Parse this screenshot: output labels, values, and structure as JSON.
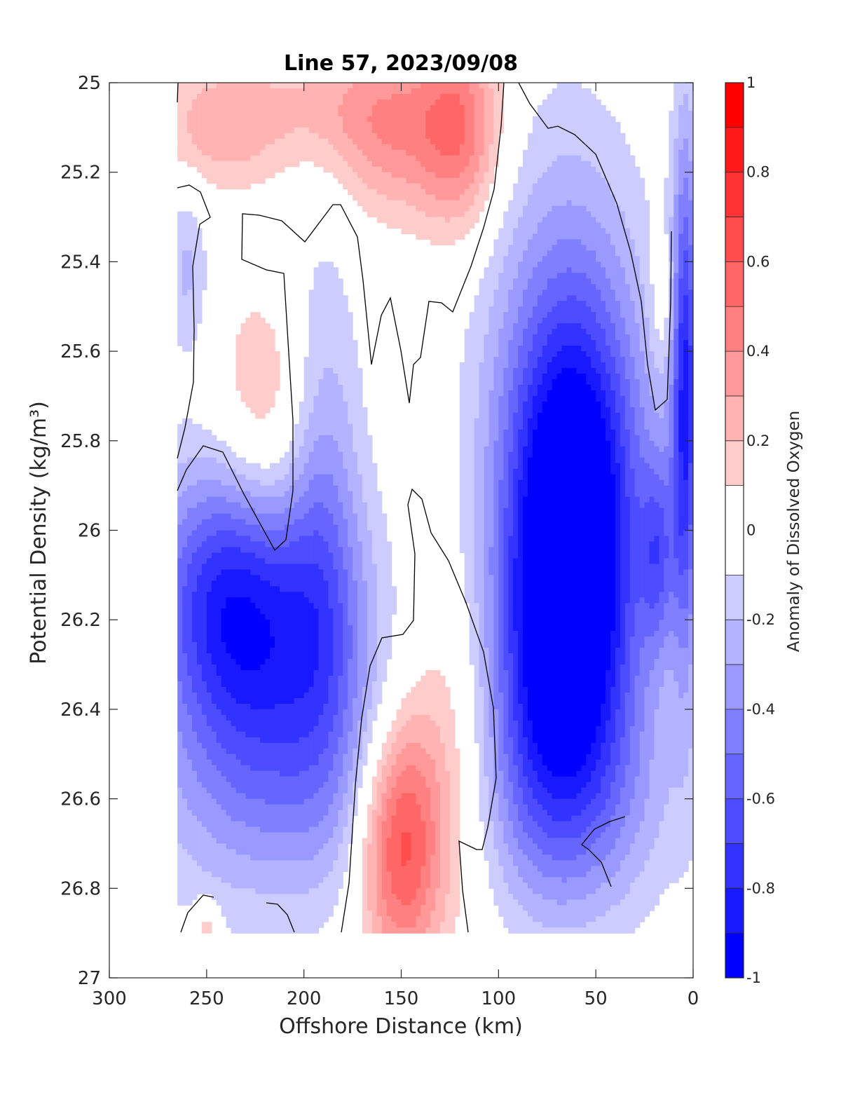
{
  "chart_data": {
    "type": "heatmap",
    "title": "Line 57, 2023/09/08",
    "xlabel": "Offshore Distance (km)",
    "ylabel": "Potential Density (kg/m³)",
    "xlim": [
      300,
      0
    ],
    "ylim": [
      25,
      27
    ],
    "x_ticks": [
      "300",
      "250",
      "200",
      "150",
      "100",
      "50",
      "0"
    ],
    "y_ticks": [
      "25",
      "25.2",
      "25.4",
      "25.6",
      "25.8",
      "26",
      "26.2",
      "26.4",
      "26.6",
      "26.8",
      "27"
    ],
    "y_reversed": true,
    "colorbar": {
      "label": "Anomaly of Dissolved Oxygen",
      "range": [
        -1,
        1
      ],
      "tick_labels": [
        "1",
        "0.8",
        "0.6",
        "0.4",
        "0.2",
        "0",
        "-0.2",
        "-0.4",
        "-0.6",
        "-0.8",
        "-1"
      ],
      "levels": [
        -1,
        -0.9,
        -0.8,
        -0.7,
        -0.6,
        -0.5,
        -0.4,
        -0.3,
        -0.2,
        -0.1,
        0.1,
        0.2,
        0.3,
        0.4,
        0.5,
        0.6,
        0.7,
        0.8,
        0.9,
        1
      ],
      "colormap": "blue-white-red",
      "neutral_band": [
        -0.1,
        0.1
      ]
    },
    "data_extent": {
      "x": [
        265,
        0
      ],
      "y": [
        25,
        26.9
      ]
    },
    "zero_contour": "black",
    "features": [
      {
        "name": "positive anomaly near surface",
        "x": 245,
        "y": 25.1,
        "value": 0.25
      },
      {
        "name": "positive anomaly near surface",
        "x": 155,
        "y": 25.1,
        "value": 0.35
      },
      {
        "name": "positive anomaly near surface",
        "x": 120,
        "y": 25.1,
        "value": 0.45
      },
      {
        "name": "positive anomaly mid depth",
        "x": 220,
        "y": 25.75,
        "value": 0.25
      },
      {
        "name": "positive anomaly deep core",
        "x": 150,
        "y": 26.7,
        "value": 0.65
      },
      {
        "name": "negative anomaly offshore",
        "x": 240,
        "y": 26.15,
        "value": -0.65
      },
      {
        "name": "negative anomaly nearshore core",
        "x": 62,
        "y": 26.0,
        "value": -0.9
      },
      {
        "name": "negative anomaly coastal edge",
        "x": 5,
        "y": 25.6,
        "value": -0.75
      }
    ]
  }
}
